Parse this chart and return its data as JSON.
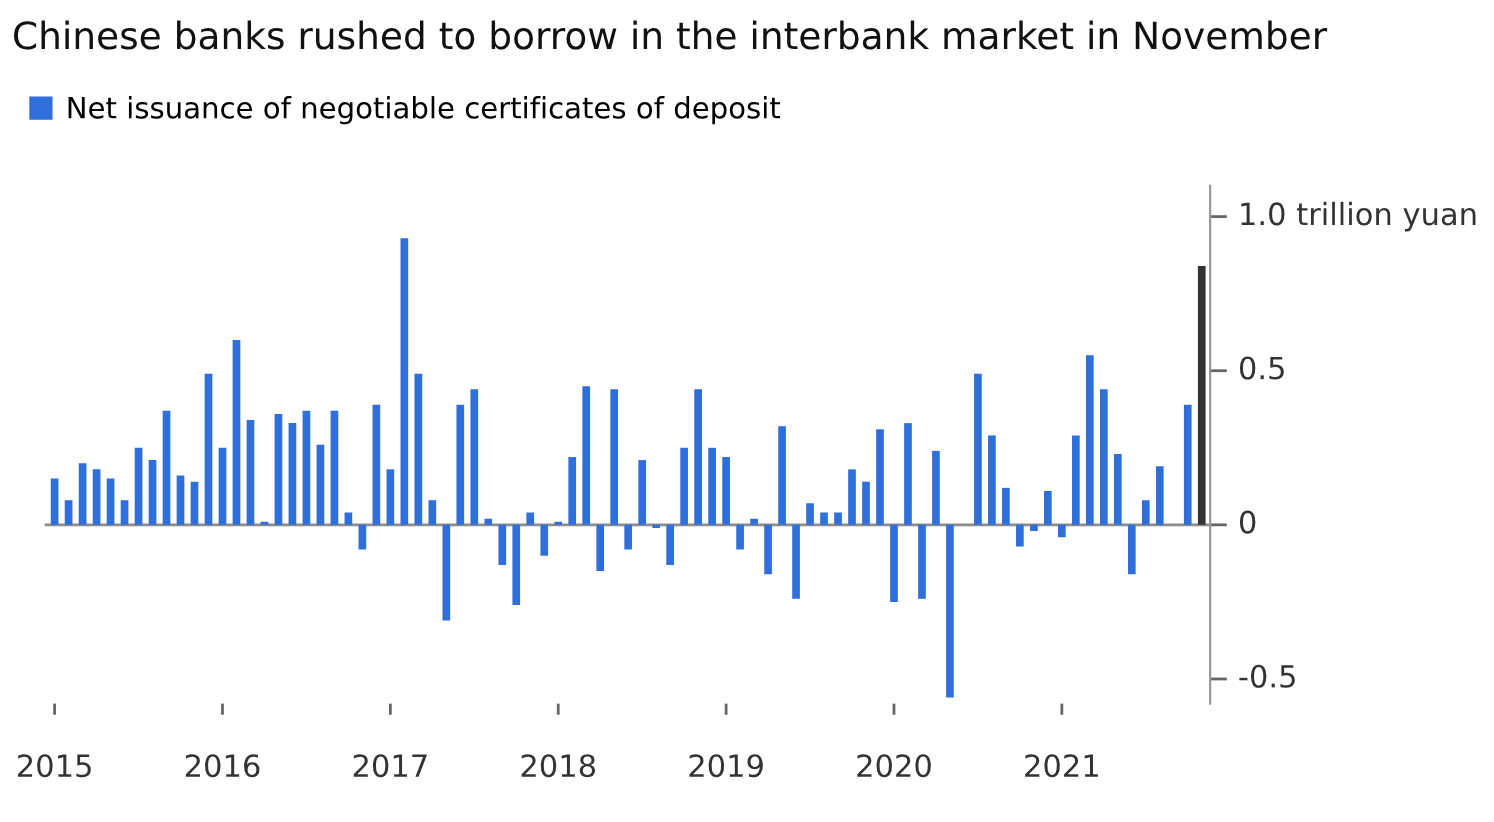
{
  "chart_data": {
    "type": "bar",
    "title": "Chinese banks rushed to borrow in the interbank market in November",
    "categories": [
      "2015",
      null,
      null,
      null,
      null,
      null,
      null,
      null,
      null,
      null,
      null,
      null,
      "2016",
      null,
      null,
      null,
      null,
      null,
      null,
      null,
      null,
      null,
      null,
      null,
      "2017",
      null,
      null,
      null,
      null,
      null,
      null,
      null,
      null,
      null,
      null,
      null,
      "2018",
      null,
      null,
      null,
      null,
      null,
      null,
      null,
      null,
      null,
      null,
      null,
      "2019",
      null,
      null,
      null,
      null,
      null,
      null,
      null,
      null,
      null,
      null,
      null,
      "2020",
      null,
      null,
      null,
      null,
      null,
      null,
      null,
      null,
      null,
      null,
      null,
      "2021",
      null,
      null,
      null,
      null,
      null,
      null,
      null,
      null,
      null,
      null
    ],
    "series": [
      {
        "name": "Net issuance of negotiable certificates of deposit",
        "color": "#2f6fdc",
        "colors": [
          "#2f6fdc",
          "#2f6fdc",
          "#2f6fdc",
          "#2f6fdc",
          "#2f6fdc",
          "#2f6fdc",
          "#2f6fdc",
          "#2f6fdc",
          "#2f6fdc",
          "#2f6fdc",
          "#2f6fdc",
          "#2f6fdc",
          "#2f6fdc",
          "#2f6fdc",
          "#2f6fdc",
          "#2f6fdc",
          "#2f6fdc",
          "#2f6fdc",
          "#2f6fdc",
          "#2f6fdc",
          "#2f6fdc",
          "#2f6fdc",
          "#2f6fdc",
          "#2f6fdc",
          "#2f6fdc",
          "#2f6fdc",
          "#2f6fdc",
          "#2f6fdc",
          "#2f6fdc",
          "#2f6fdc",
          "#2f6fdc",
          "#2f6fdc",
          "#2f6fdc",
          "#2f6fdc",
          "#2f6fdc",
          "#2f6fdc",
          "#2f6fdc",
          "#2f6fdc",
          "#2f6fdc",
          "#2f6fdc",
          "#2f6fdc",
          "#2f6fdc",
          "#2f6fdc",
          "#2f6fdc",
          "#2f6fdc",
          "#2f6fdc",
          "#2f6fdc",
          "#2f6fdc",
          "#2f6fdc",
          "#2f6fdc",
          "#2f6fdc",
          "#2f6fdc",
          "#2f6fdc",
          "#2f6fdc",
          "#2f6fdc",
          "#2f6fdc",
          "#2f6fdc",
          "#2f6fdc",
          "#2f6fdc",
          "#2f6fdc",
          "#2f6fdc",
          "#2f6fdc",
          "#2f6fdc",
          "#2f6fdc",
          "#2f6fdc",
          "#2f6fdc",
          "#2f6fdc",
          "#2f6fdc",
          "#2f6fdc",
          "#2f6fdc",
          "#2f6fdc",
          "#2f6fdc",
          "#2f6fdc",
          "#2f6fdc",
          "#2f6fdc",
          "#2f6fdc",
          "#2f6fdc",
          "#2f6fdc",
          "#2f6fdc",
          "#2f6fdc",
          "#2f6fdc",
          "#2f6fdc",
          "#333333"
        ],
        "values": [
          0.15,
          0.08,
          0.2,
          0.18,
          0.15,
          0.08,
          0.25,
          0.21,
          0.37,
          0.16,
          0.14,
          0.49,
          0.25,
          0.6,
          0.34,
          0.01,
          0.36,
          0.33,
          0.37,
          0.26,
          0.37,
          0.04,
          -0.08,
          0.39,
          0.18,
          0.93,
          0.49,
          0.08,
          -0.31,
          0.39,
          0.44,
          0.02,
          -0.13,
          -0.26,
          0.04,
          -0.1,
          0.01,
          0.22,
          0.45,
          -0.15,
          0.44,
          -0.08,
          0.21,
          -0.01,
          -0.13,
          0.25,
          0.44,
          0.25,
          0.22,
          -0.08,
          0.02,
          -0.16,
          0.32,
          -0.24,
          0.07,
          0.04,
          0.04,
          0.18,
          0.14,
          0.31,
          -0.25,
          0.33,
          -0.24,
          0.24,
          -0.56,
          0,
          0.49,
          0.29,
          0.12,
          -0.07,
          -0.02,
          0.11,
          -0.04,
          0.29,
          0.55,
          0.44,
          0.23,
          -0.16,
          0.08,
          0.19,
          0,
          0.39,
          0.84
        ]
      }
    ],
    "ylim": [
      -0.58,
      1.1
    ],
    "yticks": [
      -0.5,
      0,
      0.5,
      {
        "value": 1.0,
        "label": "1.0 trillion yuan"
      }
    ],
    "ref_lines": [
      {
        "axis": "y",
        "value": 0,
        "color": "#8c8c8c"
      }
    ],
    "grid": false,
    "legend": "top left"
  }
}
